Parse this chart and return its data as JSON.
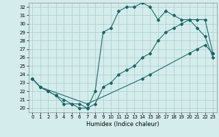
{
  "xlabel": "Humidex (Indice chaleur)",
  "xlim": [
    -0.5,
    23.5
  ],
  "ylim": [
    19.5,
    32.5
  ],
  "xticks": [
    0,
    1,
    2,
    3,
    4,
    5,
    6,
    7,
    8,
    9,
    10,
    11,
    12,
    13,
    14,
    15,
    16,
    17,
    18,
    19,
    20,
    21,
    22,
    23
  ],
  "yticks": [
    20,
    21,
    22,
    23,
    24,
    25,
    26,
    27,
    28,
    29,
    30,
    31,
    32
  ],
  "background_color": "#d4ecec",
  "grid_color": "#a8cccc",
  "line_color": "#1a6666",
  "lines": [
    {
      "x": [
        0,
        1,
        7,
        14,
        15,
        20,
        21,
        22,
        23
      ],
      "y": [
        23.5,
        22.5,
        20.5,
        23.5,
        24.0,
        26.5,
        27.0,
        27.5,
        26.5
      ]
    },
    {
      "x": [
        0,
        1,
        2,
        3,
        4,
        5,
        6,
        7,
        8,
        9,
        10,
        11,
        12,
        13,
        14,
        15,
        16,
        17,
        18,
        19,
        20,
        21,
        22,
        23
      ],
      "y": [
        23.5,
        22.5,
        22.0,
        21.5,
        21.0,
        20.5,
        20.0,
        20.0,
        22.0,
        29.0,
        29.5,
        31.5,
        32.0,
        32.0,
        32.5,
        32.0,
        30.5,
        31.5,
        31.0,
        30.5,
        30.5,
        29.5,
        28.5,
        26.0
      ]
    },
    {
      "x": [
        0,
        1,
        2,
        3,
        4,
        5,
        6,
        7,
        8,
        9,
        10,
        11,
        12,
        13,
        14,
        15,
        16,
        17,
        18,
        19,
        20,
        21,
        22,
        23
      ],
      "y": [
        23.5,
        22.5,
        22.0,
        21.5,
        20.5,
        20.5,
        20.5,
        20.0,
        20.5,
        22.5,
        23.0,
        24.0,
        24.5,
        25.0,
        26.0,
        26.5,
        28.0,
        29.0,
        29.5,
        30.0,
        30.5,
        30.5,
        30.5,
        26.5
      ]
    }
  ]
}
